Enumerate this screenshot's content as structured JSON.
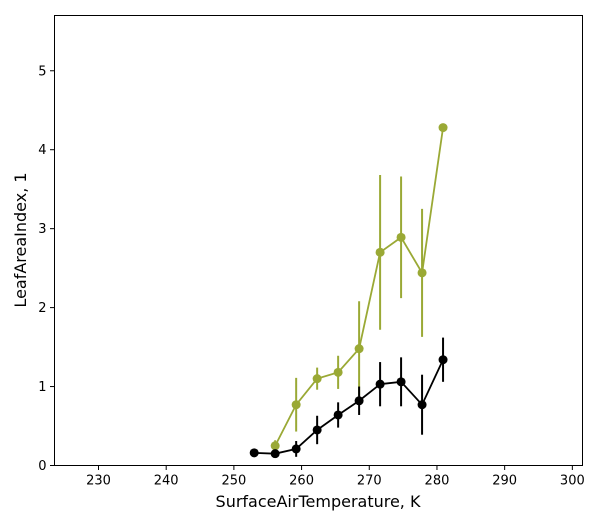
{
  "chart_data": {
    "type": "line",
    "xlabel": "SurfaceAirTemperature,  K",
    "ylabel": "LeafAreaIndex,  1",
    "xlim": [
      223.5,
      301.5
    ],
    "ylim": [
      0,
      5.7
    ],
    "grid": false,
    "legend": "none",
    "x_ticks": [
      230,
      240,
      250,
      260,
      270,
      280,
      290,
      300
    ],
    "y_ticks": [
      0,
      1,
      2,
      3,
      4,
      5
    ],
    "series": [
      {
        "color": "#9aa935",
        "points": [
          {
            "x": 256.1,
            "y": 0.25,
            "err": 0.07
          },
          {
            "x": 259.2,
            "y": 0.77,
            "err": 0.34
          },
          {
            "x": 262.3,
            "y": 1.1,
            "err": 0.14
          },
          {
            "x": 265.4,
            "y": 1.18,
            "err": 0.21
          },
          {
            "x": 268.5,
            "y": 1.48,
            "err": 0.6
          },
          {
            "x": 271.6,
            "y": 2.7,
            "err": 0.98
          },
          {
            "x": 274.7,
            "y": 2.89,
            "err": 0.77
          },
          {
            "x": 277.8,
            "y": 2.44,
            "err": 0.81
          },
          {
            "x": 280.9,
            "y": 4.28,
            "err": 0
          }
        ]
      },
      {
        "color": "#000000",
        "points": [
          {
            "x": 253.0,
            "y": 0.16,
            "err": 0.04
          },
          {
            "x": 256.1,
            "y": 0.15,
            "err": 0.05
          },
          {
            "x": 259.2,
            "y": 0.21,
            "err": 0.1
          },
          {
            "x": 262.3,
            "y": 0.45,
            "err": 0.18
          },
          {
            "x": 265.4,
            "y": 0.64,
            "err": 0.16
          },
          {
            "x": 268.5,
            "y": 0.82,
            "err": 0.18
          },
          {
            "x": 271.6,
            "y": 1.03,
            "err": 0.28
          },
          {
            "x": 274.7,
            "y": 1.06,
            "err": 0.31
          },
          {
            "x": 277.8,
            "y": 0.77,
            "err": 0.38
          },
          {
            "x": 280.9,
            "y": 1.34,
            "err": 0.28
          }
        ]
      }
    ]
  }
}
